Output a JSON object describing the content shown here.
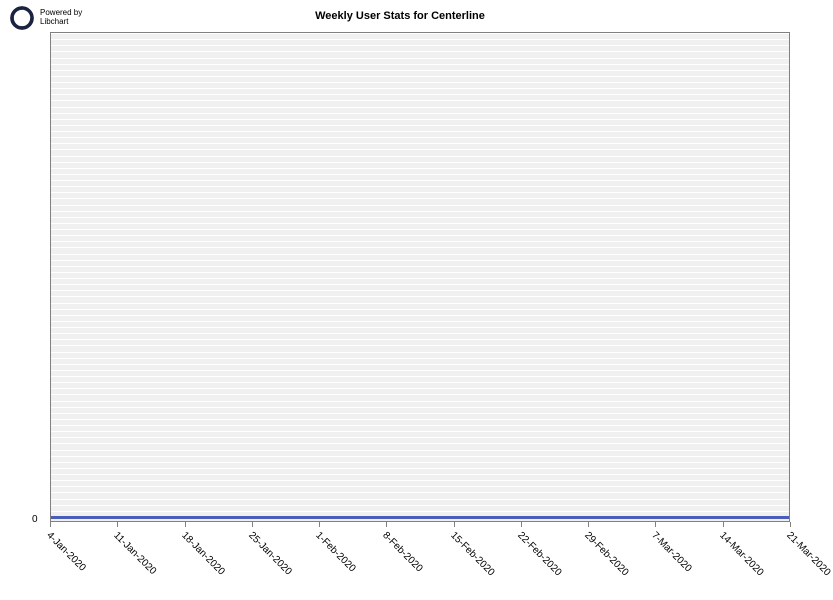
{
  "branding": {
    "line1": "Powered by",
    "line2": "Libchart",
    "icon_color": "#1a2340"
  },
  "chart": {
    "type": "line",
    "title": "Weekly User Stats for Centerline",
    "title_fontsize": 11,
    "background_color": "#ffffff",
    "plot_background": "#f0f0f0",
    "grid_color": "#ffffff",
    "border_color": "#808080",
    "line_color": "#4a5db8",
    "line_width": 3,
    "ylim": [
      0,
      0
    ],
    "y_ticks": [
      0
    ],
    "y_tick_labels": [
      "0"
    ],
    "x_tick_labels": [
      "4-Jan-2020",
      "11-Jan-2020",
      "18-Jan-2020",
      "25-Jan-2020",
      "1-Feb-2020",
      "8-Feb-2020",
      "15-Feb-2020",
      "22-Feb-2020",
      "29-Feb-2020",
      "7-Mar-2020",
      "14-Mar-2020",
      "21-Mar-2020"
    ],
    "values": [
      0,
      0,
      0,
      0,
      0,
      0,
      0,
      0,
      0,
      0,
      0,
      0
    ],
    "x_label_rotation": 45,
    "label_fontsize": 10,
    "horizontal_gridline_count": 80
  }
}
